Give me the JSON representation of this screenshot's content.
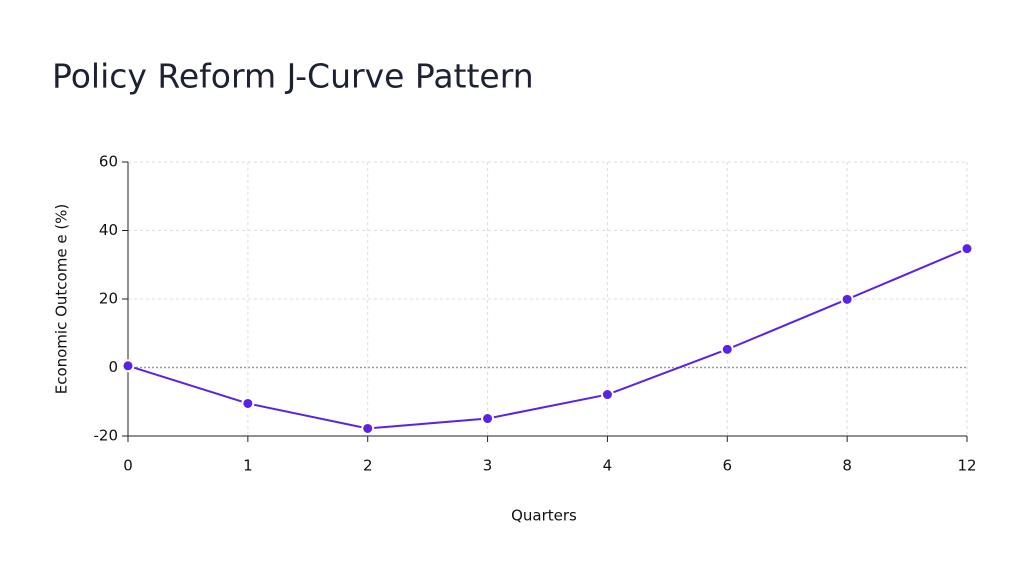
{
  "chart_data": {
    "type": "line",
    "title": "Policy Reform J-Curve Pattern",
    "x_label": "Quarters",
    "y_label": "Economic Outcome e (%)",
    "categories": [
      "0",
      "1",
      "2",
      "3",
      "4",
      "6",
      "8",
      "12"
    ],
    "series": [
      {
        "name": "Economic Outcome",
        "color": "#5b21e6",
        "values": [
          0.5,
          -10.5,
          -17.8,
          -14.9,
          -7.9,
          5.3,
          19.9,
          34.7
        ]
      }
    ],
    "ylim": [
      -20,
      60
    ],
    "yticks": [
      -20,
      0,
      20,
      40,
      60
    ],
    "grid": true
  }
}
